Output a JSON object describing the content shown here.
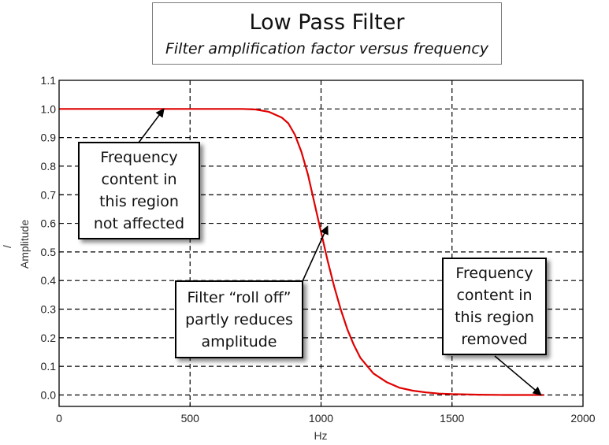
{
  "header": {
    "title": "Low Pass Filter",
    "subtitle": "Filter amplification factor versus frequency"
  },
  "chart_data": {
    "type": "line",
    "xlabel": "Hz",
    "ylabel": "Amplitude",
    "ylabel_extra": "/",
    "xlim": [
      0,
      2000
    ],
    "ylim": [
      -0.04,
      1.1
    ],
    "x_ticks": [
      0,
      500,
      1000,
      1500,
      2000
    ],
    "x_tick_labels": [
      "0",
      "500",
      "1000",
      "1500",
      "2000"
    ],
    "y_ticks": [
      0.0,
      0.1,
      0.2,
      0.3,
      0.4,
      0.5,
      0.6,
      0.7,
      0.8,
      0.9,
      1.0,
      1.1
    ],
    "y_tick_labels": [
      "0.0",
      "0.1",
      "0.2",
      "0.3",
      "0.4",
      "0.5",
      "0.6",
      "0.7",
      "0.8",
      "0.9",
      "1.0",
      "1.1"
    ],
    "grid": true,
    "series": [
      {
        "color": "#e00000",
        "x": [
          0,
          100,
          200,
          300,
          400,
          500,
          600,
          700,
          750,
          800,
          850,
          875,
          900,
          925,
          950,
          975,
          1000,
          1025,
          1050,
          1075,
          1100,
          1125,
          1150,
          1200,
          1250,
          1300,
          1350,
          1400,
          1450,
          1500,
          1550,
          1600,
          1700,
          1800,
          1850
        ],
        "y": [
          1.0,
          1.0,
          1.0,
          1.0,
          1.0,
          1.0,
          1.0,
          1.0,
          0.998,
          0.99,
          0.97,
          0.95,
          0.91,
          0.85,
          0.77,
          0.67,
          0.57,
          0.47,
          0.38,
          0.3,
          0.23,
          0.175,
          0.13,
          0.075,
          0.045,
          0.025,
          0.015,
          0.009,
          0.005,
          0.003,
          0.002,
          0.001,
          0.0,
          0.0,
          0.0
        ]
      }
    ]
  },
  "annotations": [
    {
      "text": "Frequency\ncontent in\nthis region\nnot affected",
      "arrow_to": [
        400,
        1.0
      ]
    },
    {
      "text": "Filter “roll off”\npartly reduces\namplitude",
      "arrow_to": [
        1025,
        0.59
      ]
    },
    {
      "text": "Frequency\ncontent in\nthis region\nremoved",
      "arrow_to": [
        1840,
        0.0
      ]
    }
  ]
}
